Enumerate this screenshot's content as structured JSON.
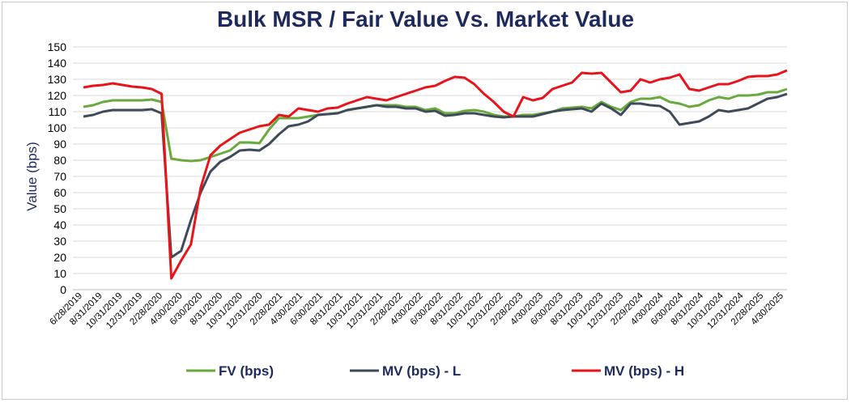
{
  "chart_data": {
    "type": "line",
    "title": "Bulk MSR / Fair Value Vs. Market Value",
    "ylabel": "Value (bps)",
    "xlabel": "",
    "ylim": [
      0,
      150
    ],
    "yticks": [
      0,
      10,
      20,
      30,
      40,
      50,
      60,
      70,
      80,
      90,
      100,
      110,
      120,
      130,
      140,
      150
    ],
    "grid": "horizontal",
    "legend": "bottom",
    "x_labels": [
      "6/28/2019",
      "8/31/2019",
      "10/31/2019",
      "12/31/2019",
      "2/28/2020",
      "4/30/2020",
      "6/30/2020",
      "8/31/2020",
      "10/31/2020",
      "12/31/2020",
      "2/28/2021",
      "4/30/2021",
      "6/30/2021",
      "8/31/2021",
      "10/31/2021",
      "12/31/2021",
      "2/28/2022",
      "4/30/2022",
      "6/30/2022",
      "8/31/2022",
      "10/31/2022",
      "12/31/2022",
      "2/28/2023",
      "4/30/2023",
      "6/30/2023",
      "8/31/2023",
      "10/31/2023",
      "12/31/2023",
      "2/29/2024",
      "4/30/2024",
      "6/30/2024",
      "8/31/2024",
      "10/31/2024",
      "12/31/2024",
      "2/28/2025",
      "4/30/2025"
    ],
    "series": [
      {
        "name": "FV (bps)",
        "color": "#6aaa3c",
        "values": [
          113,
          114,
          116,
          117,
          117,
          117,
          117,
          117.5,
          116,
          81,
          80,
          79.5,
          80,
          82,
          84,
          86,
          91,
          91,
          90.5,
          99,
          106,
          106,
          106,
          107,
          108,
          108.5,
          109,
          111,
          112,
          113,
          114,
          114,
          114,
          113,
          113,
          111,
          112,
          109,
          109,
          110.5,
          111,
          110,
          108,
          107,
          107,
          108,
          108,
          109,
          110,
          112,
          112.5,
          113,
          112,
          116,
          113,
          111,
          116,
          118,
          118,
          119,
          116,
          115,
          113,
          114,
          117,
          119,
          118,
          120,
          120,
          120.5,
          122,
          122,
          124
        ]
      },
      {
        "name": "MV (bps) - L",
        "color": "#3f4b5a",
        "values": [
          107,
          108,
          110,
          111,
          111,
          111,
          111,
          111.5,
          109,
          20,
          24,
          43,
          60,
          73,
          79,
          82,
          86,
          86.5,
          86,
          90,
          96,
          101,
          102,
          104,
          108,
          108.5,
          109,
          111,
          112,
          113,
          114,
          113,
          113,
          112,
          112,
          110,
          110.5,
          107.5,
          108,
          109,
          109,
          108,
          107,
          106.5,
          107,
          107,
          107,
          108.5,
          110,
          111,
          111.5,
          112,
          110,
          115,
          112,
          108,
          115,
          115,
          114,
          113.5,
          110,
          102,
          103,
          104,
          107,
          111,
          110,
          111,
          112,
          115,
          118,
          119,
          121
        ]
      },
      {
        "name": "MV (bps) - H",
        "color": "#e8141c",
        "values": [
          125,
          126,
          126.5,
          127.5,
          126.5,
          125.5,
          125,
          124,
          121,
          7,
          18,
          28,
          63,
          83,
          89,
          93,
          97,
          99,
          101,
          102,
          108,
          107,
          112,
          111,
          110,
          112,
          112.5,
          115,
          117,
          119,
          118,
          117,
          119,
          121,
          123,
          125,
          126,
          129,
          131.5,
          131,
          127,
          121,
          116,
          110,
          107,
          119,
          117,
          118.5,
          124,
          126,
          128,
          134,
          133.5,
          134,
          128,
          122,
          123,
          130,
          128,
          130,
          131,
          133,
          124,
          123,
          125,
          127,
          127,
          129,
          131.5,
          132,
          132,
          133,
          135.5
        ]
      }
    ]
  }
}
